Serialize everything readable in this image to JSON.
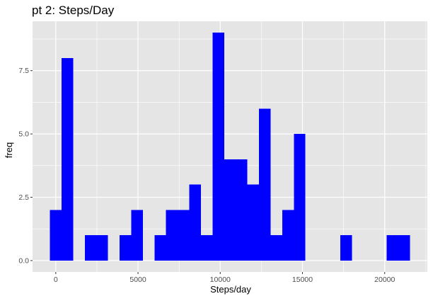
{
  "chart_data": {
    "type": "bar",
    "title": "pt 2: Steps/Day",
    "xlabel": "Steps/day",
    "ylabel": "freq",
    "bin_width": 706,
    "first_bin_center": 0,
    "xlim": [
      -1412,
      22592
    ],
    "ylim": [
      -0.45,
      9.45
    ],
    "xticks": [
      0,
      5000,
      10000,
      15000,
      20000
    ],
    "xtick_labels": [
      "0",
      "5000",
      "10000",
      "15000",
      "20000"
    ],
    "yticks": [
      0,
      2.5,
      5,
      7.5
    ],
    "ytick_labels": [
      "0.0",
      "2.5",
      "5.0",
      "7.5"
    ],
    "bin_centers": [
      0,
      706,
      1412,
      2118,
      2824,
      3530,
      4236,
      4942,
      5648,
      6354,
      7060,
      7766,
      8472,
      9178,
      9884,
      10590,
      11296,
      12002,
      12708,
      13414,
      14120,
      14826,
      15532,
      16238,
      16944,
      17650,
      18356,
      19062,
      19768,
      20474,
      21180
    ],
    "values": [
      2,
      8,
      0,
      1,
      1,
      0,
      1,
      2,
      0,
      1,
      2,
      2,
      3,
      1,
      9,
      4,
      4,
      3,
      6,
      1,
      2,
      5,
      0,
      0,
      0,
      1,
      0,
      0,
      0,
      1,
      1
    ],
    "bar_color": "#0000ff",
    "panel_color": "#e5e5e5",
    "grid_color": "#ffffff",
    "grid": true
  }
}
